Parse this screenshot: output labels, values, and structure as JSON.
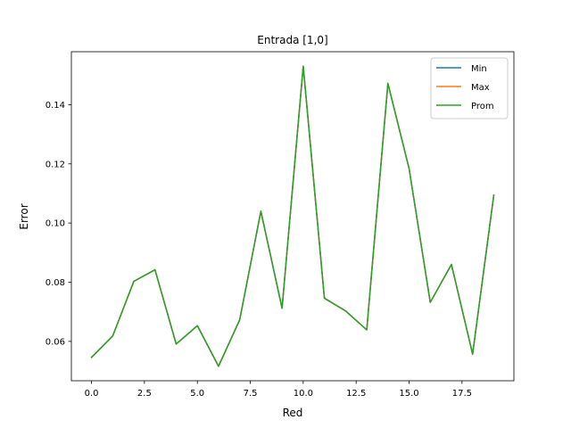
{
  "chart_data": {
    "type": "line",
    "title": "Entrada [1,0]",
    "xlabel": "Red",
    "ylabel": "Error",
    "xlim": [
      -0.95,
      19.95
    ],
    "ylim": [
      0.0467,
      0.1579
    ],
    "xticks": [
      0,
      2.5,
      5,
      7.5,
      10,
      12.5,
      15,
      17.5
    ],
    "xtick_labels": [
      "0.0",
      "2.5",
      "5.0",
      "7.5",
      "10.0",
      "12.5",
      "15.0",
      "17.5"
    ],
    "yticks": [
      0.06,
      0.08,
      0.1,
      0.12,
      0.14
    ],
    "ytick_labels": [
      "0.06",
      "0.08",
      "0.10",
      "0.12",
      "0.14"
    ],
    "grid": false,
    "legend_position": "top-right",
    "x": [
      0,
      1,
      2,
      3,
      4,
      5,
      6,
      7,
      8,
      9,
      10,
      11,
      12,
      13,
      14,
      15,
      16,
      17,
      18,
      19
    ],
    "series": [
      {
        "name": "Min",
        "color": "#1f77b4",
        "values": [
          0.0546,
          0.0618,
          0.0803,
          0.0842,
          0.0591,
          0.0653,
          0.0516,
          0.0673,
          0.104,
          0.0712,
          0.153,
          0.0746,
          0.0703,
          0.0639,
          0.1472,
          0.1184,
          0.0732,
          0.086,
          0.0557,
          0.1094
        ]
      },
      {
        "name": "Max",
        "color": "#ff7f0e",
        "values": [
          0.0546,
          0.0618,
          0.0803,
          0.0842,
          0.0591,
          0.0653,
          0.0516,
          0.0673,
          0.104,
          0.0712,
          0.153,
          0.0746,
          0.0703,
          0.0639,
          0.1472,
          0.1184,
          0.0732,
          0.086,
          0.0557,
          0.1094
        ]
      },
      {
        "name": "Prom",
        "color": "#2ca02c",
        "values": [
          0.0546,
          0.0618,
          0.0803,
          0.0842,
          0.0591,
          0.0653,
          0.0516,
          0.0673,
          0.104,
          0.0712,
          0.153,
          0.0746,
          0.0703,
          0.0639,
          0.1472,
          0.1184,
          0.0732,
          0.086,
          0.0557,
          0.1094
        ]
      }
    ]
  }
}
